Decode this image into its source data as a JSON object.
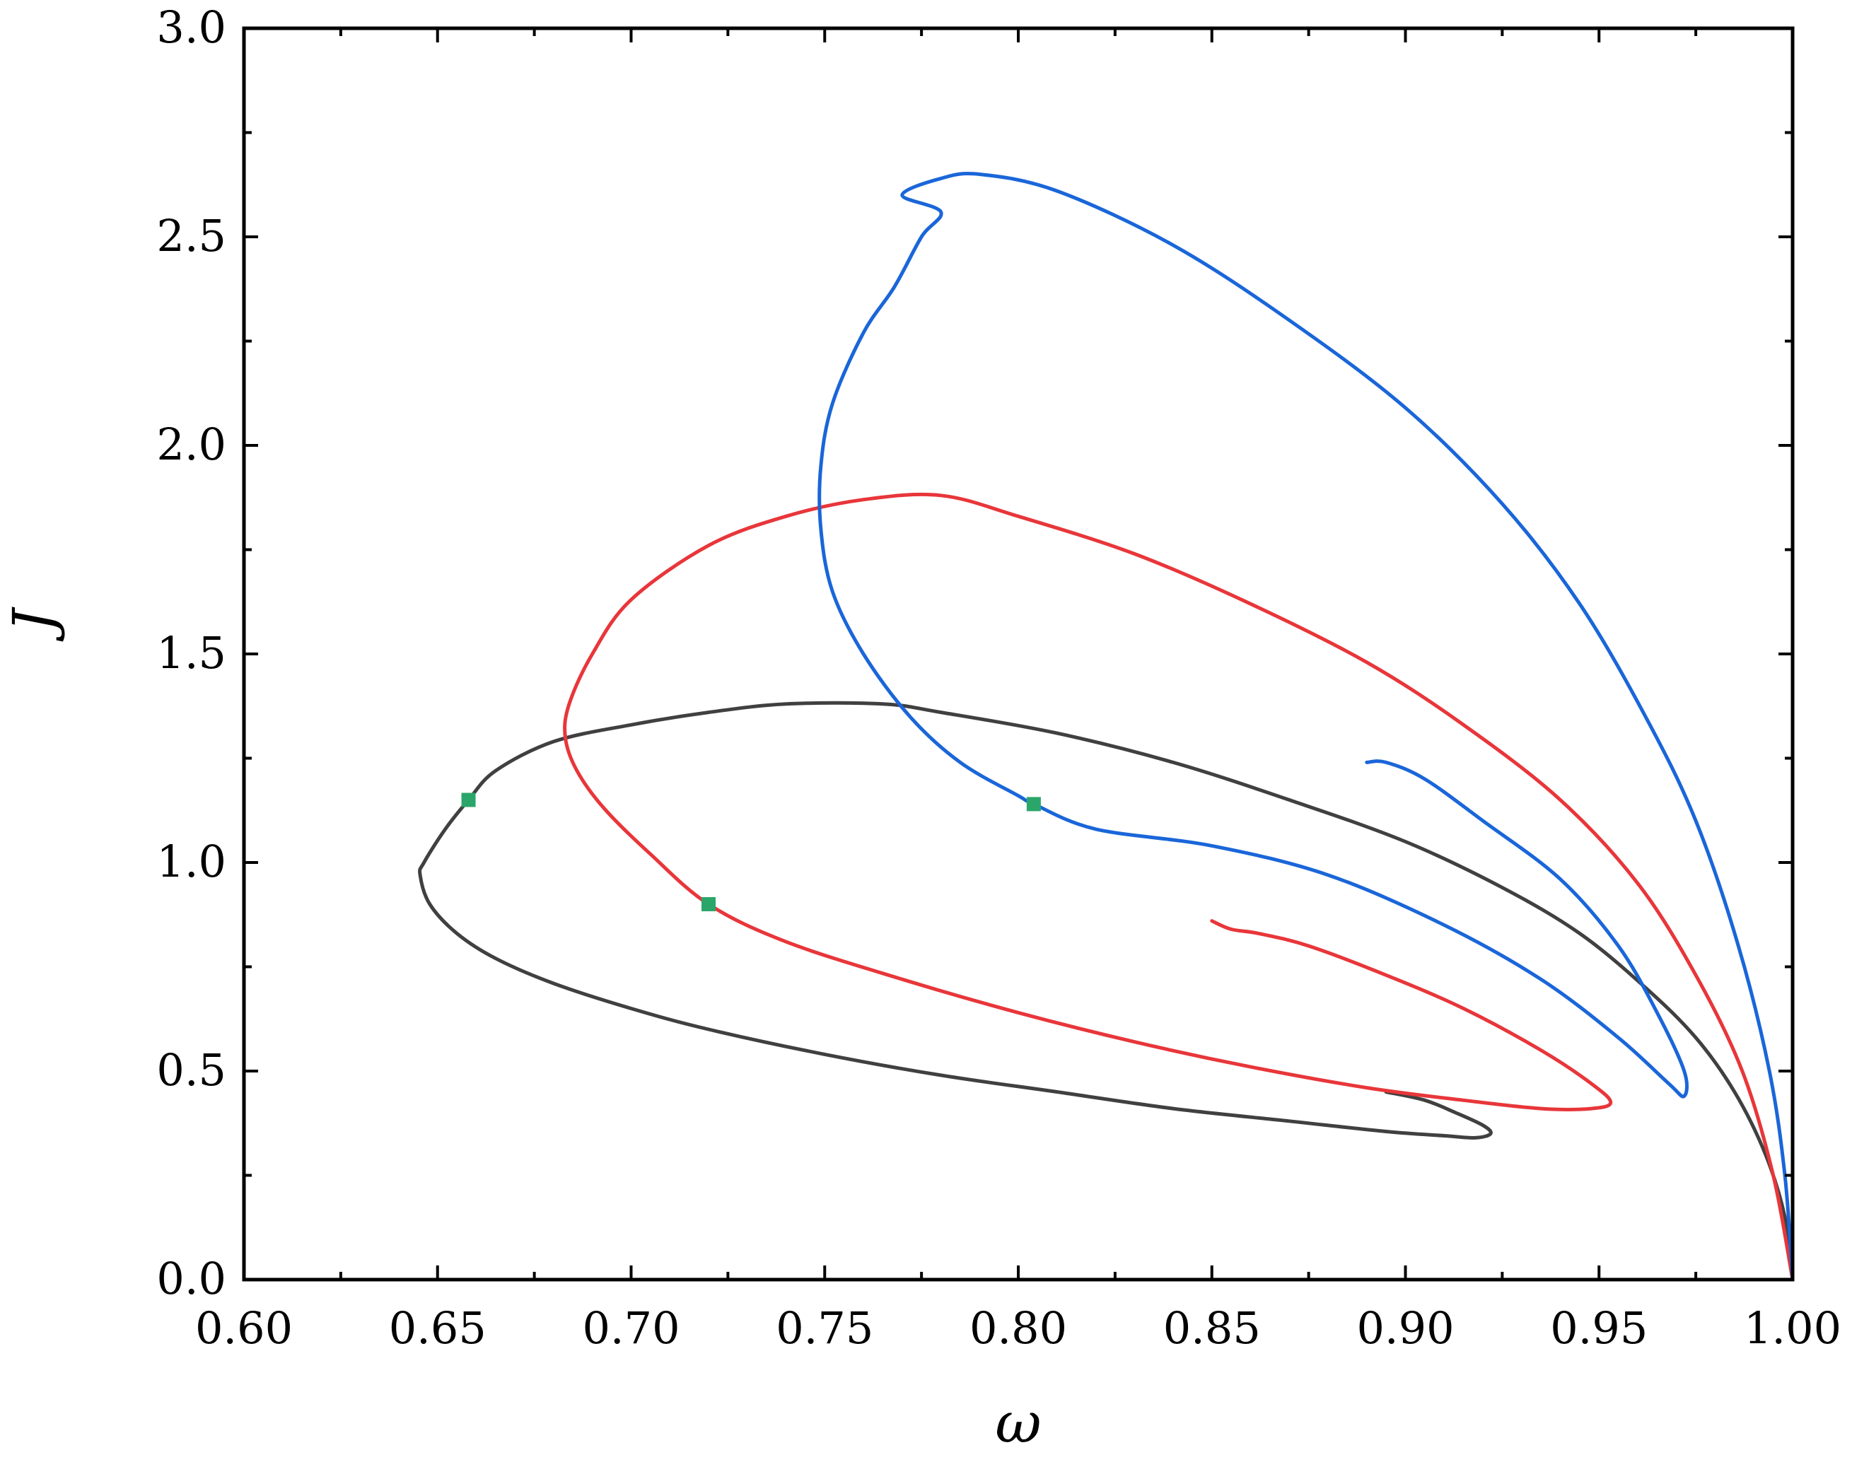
{
  "chart_data": {
    "type": "line",
    "title": "",
    "xlabel": "ω",
    "ylabel": "J",
    "xlim": [
      0.6,
      1.0
    ],
    "ylim": [
      0.0,
      3.0
    ],
    "xticks": [
      "0.60",
      "0.65",
      "0.70",
      "0.75",
      "0.80",
      "0.85",
      "0.90",
      "0.95",
      "1.00"
    ],
    "yticks": [
      "0.0",
      "0.5",
      "1.0",
      "1.5",
      "2.0",
      "2.5",
      "3.0"
    ],
    "grid": false,
    "legend": "none",
    "colors": {
      "dark_curve": "#404040",
      "red_curve": "#e8363a",
      "blue_curve": "#1a66d9",
      "marker": "#2aa66a"
    },
    "series": [
      {
        "color": "#404040",
        "points": [
          [
            1.0,
            0.0
          ],
          [
            0.998,
            0.15
          ],
          [
            0.993,
            0.3
          ],
          [
            0.985,
            0.45
          ],
          [
            0.975,
            0.58
          ],
          [
            0.962,
            0.7
          ],
          [
            0.945,
            0.83
          ],
          [
            0.925,
            0.94
          ],
          [
            0.9,
            1.05
          ],
          [
            0.87,
            1.15
          ],
          [
            0.84,
            1.24
          ],
          [
            0.81,
            1.31
          ],
          [
            0.78,
            1.36
          ],
          [
            0.765,
            1.38
          ],
          [
            0.74,
            1.38
          ],
          [
            0.72,
            1.36
          ],
          [
            0.7,
            1.33
          ],
          [
            0.68,
            1.29
          ],
          [
            0.665,
            1.22
          ],
          [
            0.658,
            1.15
          ],
          [
            0.652,
            1.08
          ],
          [
            0.6465,
            1.0
          ],
          [
            0.6455,
            0.97
          ],
          [
            0.648,
            0.9
          ],
          [
            0.655,
            0.83
          ],
          [
            0.665,
            0.77
          ],
          [
            0.68,
            0.71
          ],
          [
            0.7,
            0.65
          ],
          [
            0.72,
            0.6
          ],
          [
            0.75,
            0.54
          ],
          [
            0.78,
            0.49
          ],
          [
            0.81,
            0.45
          ],
          [
            0.84,
            0.41
          ],
          [
            0.87,
            0.38
          ],
          [
            0.895,
            0.355
          ],
          [
            0.91,
            0.345
          ],
          [
            0.918,
            0.34
          ],
          [
            0.922,
            0.35
          ],
          [
            0.92,
            0.37
          ],
          [
            0.913,
            0.4
          ],
          [
            0.905,
            0.43
          ],
          [
            0.895,
            0.45
          ]
        ]
      },
      {
        "color": "#e8363a",
        "points": [
          [
            1.0,
            0.0
          ],
          [
            0.995,
            0.25
          ],
          [
            0.987,
            0.5
          ],
          [
            0.975,
            0.73
          ],
          [
            0.96,
            0.95
          ],
          [
            0.94,
            1.15
          ],
          [
            0.915,
            1.33
          ],
          [
            0.89,
            1.48
          ],
          [
            0.86,
            1.62
          ],
          [
            0.83,
            1.74
          ],
          [
            0.8,
            1.83
          ],
          [
            0.78,
            1.88
          ],
          [
            0.76,
            1.87
          ],
          [
            0.74,
            1.83
          ],
          [
            0.72,
            1.76
          ],
          [
            0.7,
            1.63
          ],
          [
            0.69,
            1.5
          ],
          [
            0.684,
            1.38
          ],
          [
            0.683,
            1.3
          ],
          [
            0.686,
            1.22
          ],
          [
            0.693,
            1.13
          ],
          [
            0.705,
            1.02
          ],
          [
            0.72,
            0.9
          ],
          [
            0.74,
            0.81
          ],
          [
            0.77,
            0.72
          ],
          [
            0.8,
            0.64
          ],
          [
            0.83,
            0.57
          ],
          [
            0.86,
            0.51
          ],
          [
            0.89,
            0.46
          ],
          [
            0.915,
            0.43
          ],
          [
            0.935,
            0.41
          ],
          [
            0.948,
            0.41
          ],
          [
            0.953,
            0.425
          ],
          [
            0.948,
            0.47
          ],
          [
            0.935,
            0.55
          ],
          [
            0.915,
            0.65
          ],
          [
            0.895,
            0.73
          ],
          [
            0.875,
            0.8
          ],
          [
            0.862,
            0.83
          ],
          [
            0.855,
            0.84
          ],
          [
            0.85,
            0.86
          ]
        ]
      },
      {
        "color": "#1a66d9",
        "points": [
          [
            1.0,
            0.0
          ],
          [
            0.998,
            0.25
          ],
          [
            0.994,
            0.5
          ],
          [
            0.986,
            0.8
          ],
          [
            0.975,
            1.1
          ],
          [
            0.962,
            1.35
          ],
          [
            0.945,
            1.62
          ],
          [
            0.925,
            1.86
          ],
          [
            0.9,
            2.09
          ],
          [
            0.87,
            2.3
          ],
          [
            0.84,
            2.48
          ],
          [
            0.81,
            2.61
          ],
          [
            0.79,
            2.65
          ],
          [
            0.78,
            2.64
          ],
          [
            0.77,
            2.6
          ],
          [
            0.78,
            2.56
          ],
          [
            0.775,
            2.5
          ],
          [
            0.768,
            2.38
          ],
          [
            0.76,
            2.27
          ],
          [
            0.752,
            2.1
          ],
          [
            0.749,
            1.95
          ],
          [
            0.749,
            1.8
          ],
          [
            0.752,
            1.65
          ],
          [
            0.76,
            1.5
          ],
          [
            0.772,
            1.35
          ],
          [
            0.785,
            1.24
          ],
          [
            0.8,
            1.16
          ],
          [
            0.804,
            1.14
          ],
          [
            0.82,
            1.08
          ],
          [
            0.85,
            1.04
          ],
          [
            0.88,
            0.97
          ],
          [
            0.91,
            0.85
          ],
          [
            0.935,
            0.72
          ],
          [
            0.955,
            0.58
          ],
          [
            0.968,
            0.47
          ],
          [
            0.972,
            0.44
          ],
          [
            0.972,
            0.5
          ],
          [
            0.965,
            0.64
          ],
          [
            0.955,
            0.8
          ],
          [
            0.94,
            0.96
          ],
          [
            0.92,
            1.1
          ],
          [
            0.905,
            1.2
          ],
          [
            0.895,
            1.24
          ],
          [
            0.89,
            1.24
          ]
        ]
      }
    ],
    "markers": [
      {
        "x": 0.658,
        "y": 1.15
      },
      {
        "x": 0.72,
        "y": 0.9
      },
      {
        "x": 0.804,
        "y": 1.14
      }
    ]
  }
}
